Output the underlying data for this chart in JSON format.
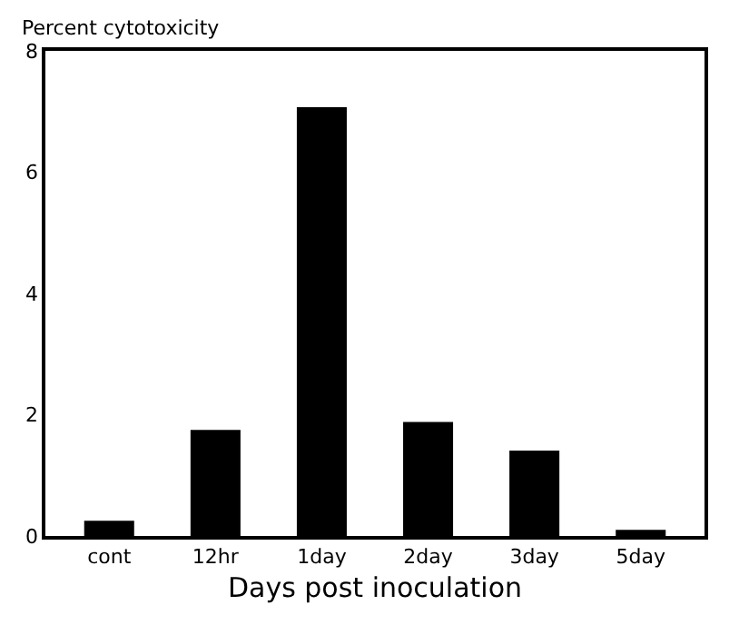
{
  "chart_data": {
    "type": "bar",
    "ylabel": "Percent cytotoxicity",
    "xlabel": "Days post inoculation",
    "categories": [
      "cont",
      "12hr",
      "1day",
      "2day",
      "3day",
      "5day"
    ],
    "values": [
      0.25,
      1.75,
      7.07,
      1.88,
      1.41,
      0.1
    ],
    "color": "#000000",
    "ylim": [
      0,
      8
    ],
    "yticks": [
      0,
      2,
      4,
      6,
      8
    ]
  }
}
